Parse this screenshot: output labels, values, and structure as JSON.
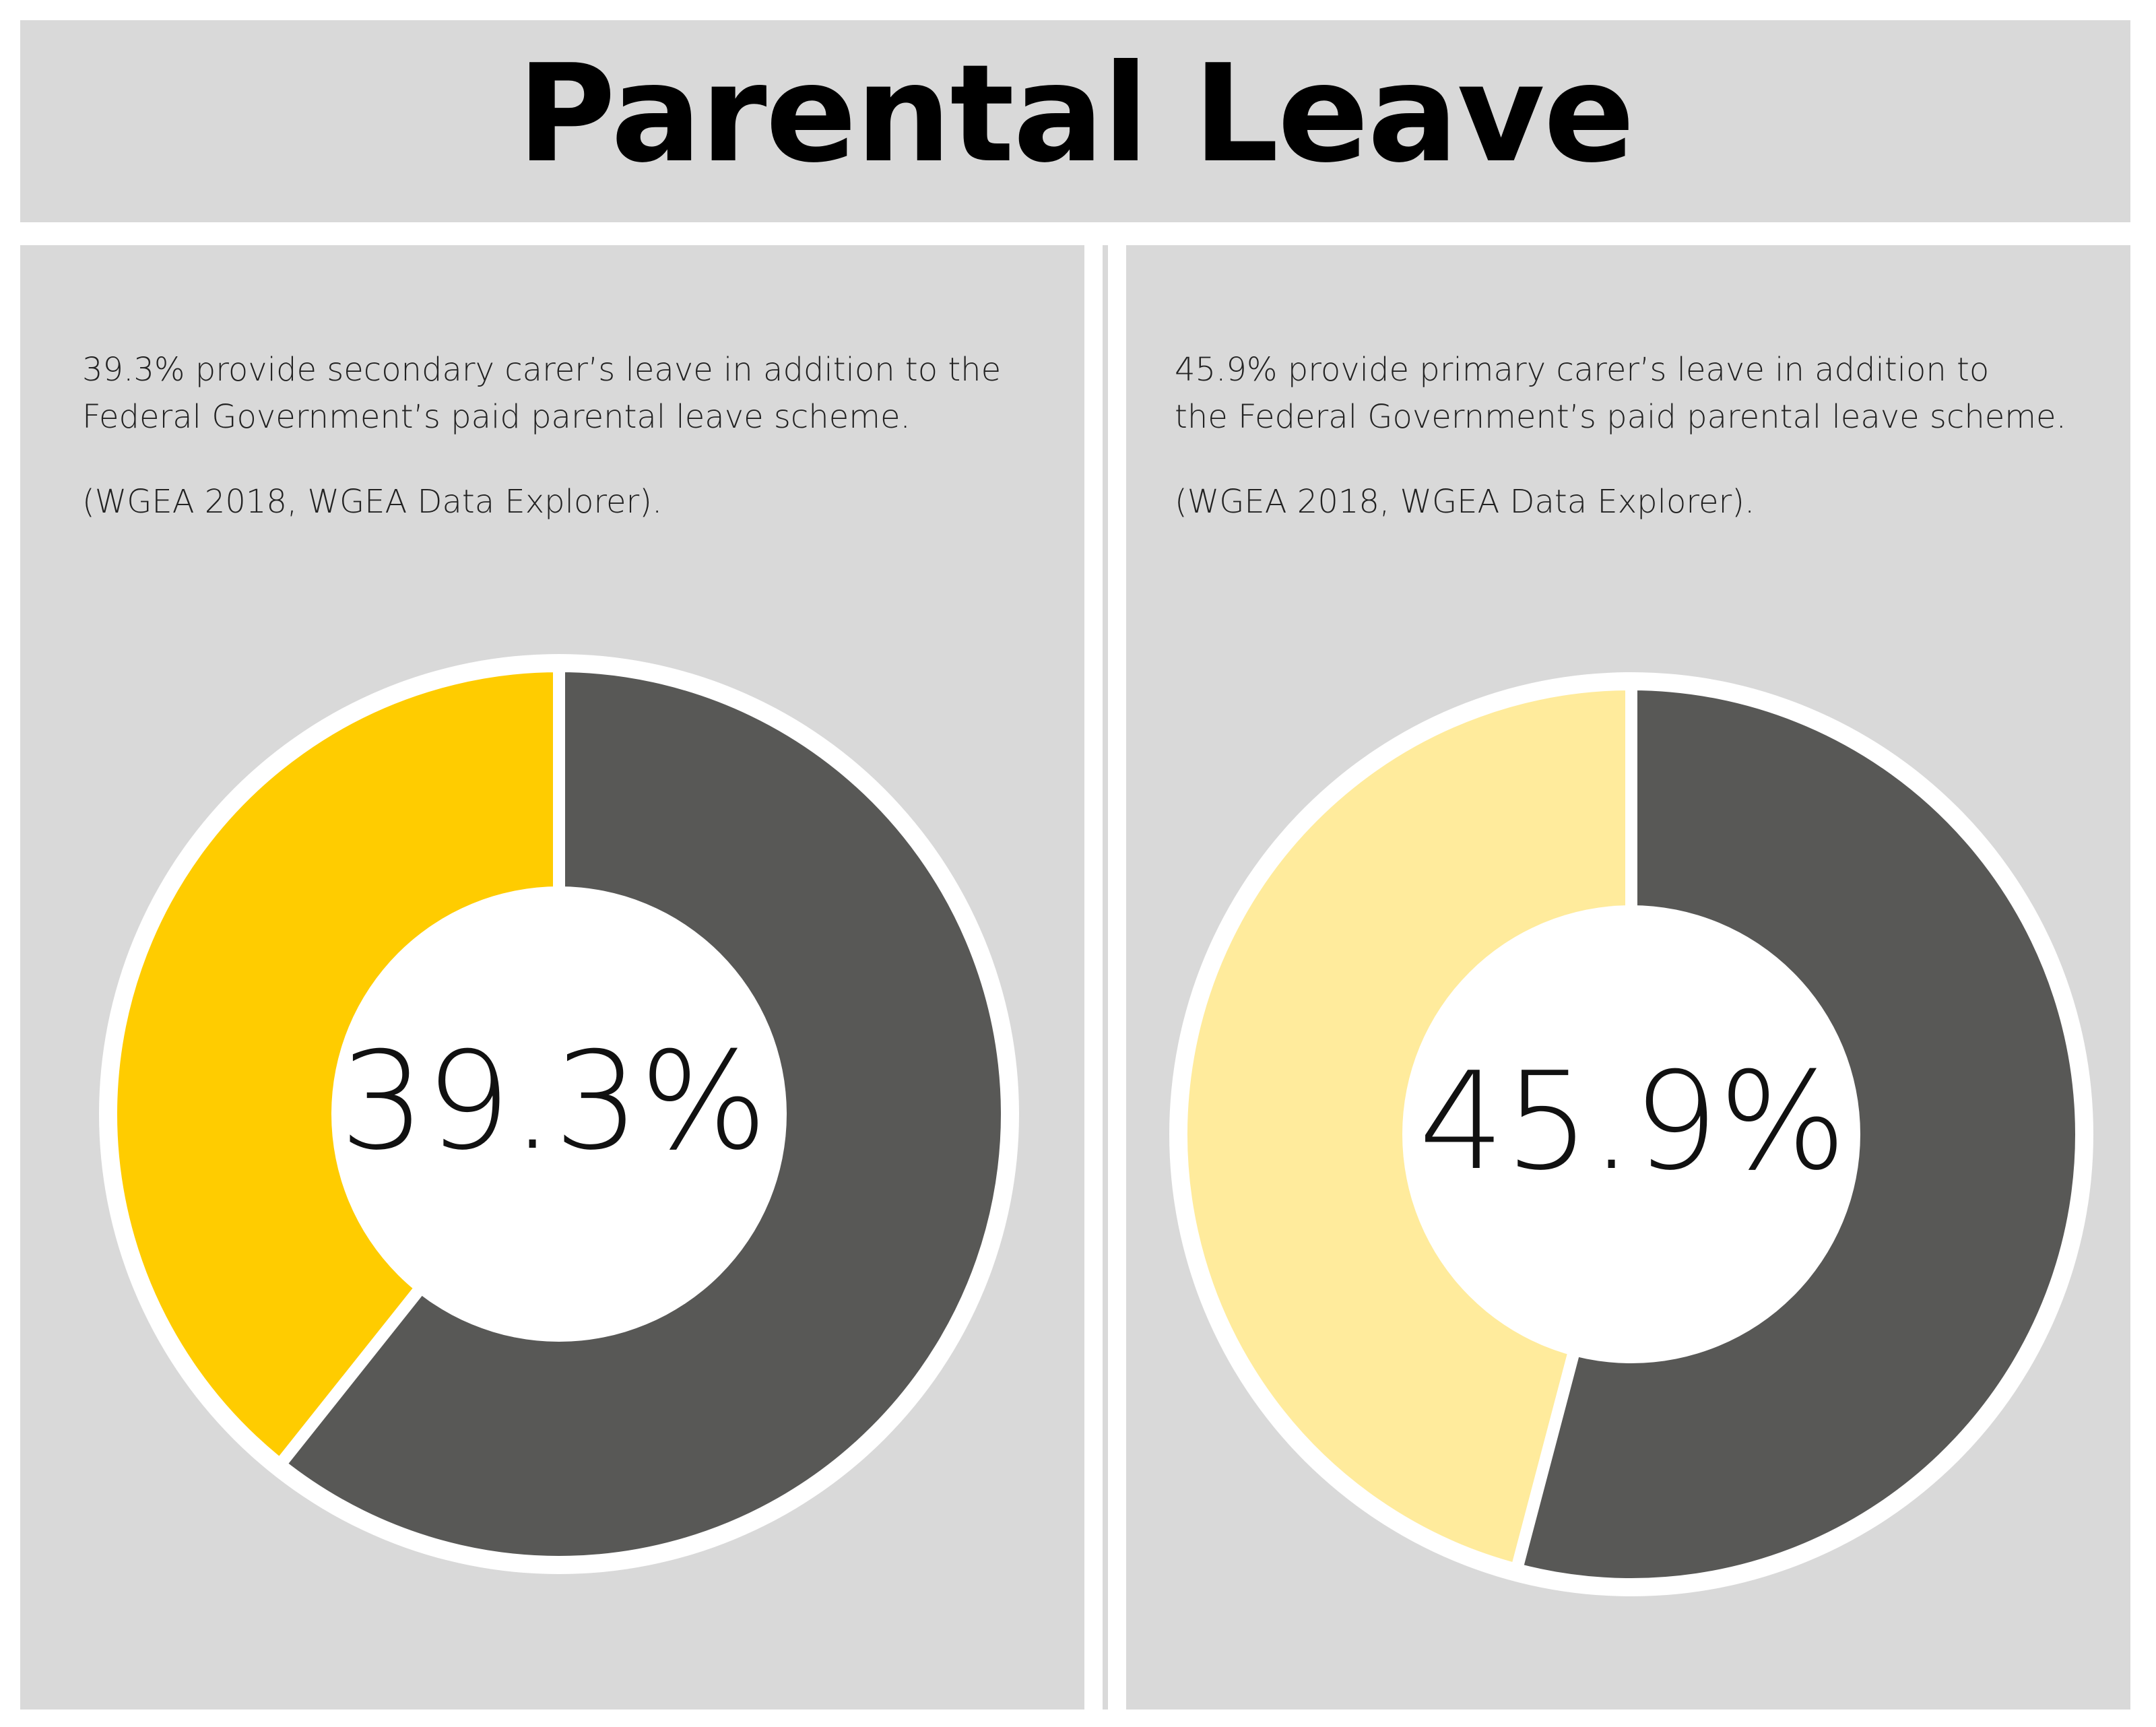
{
  "header": {
    "title": "Parental Leave"
  },
  "colors": {
    "panel_bg": "#d9d9d9",
    "remainder": "#585856",
    "secondary_accent": "#ffcc00",
    "primary_accent": "#ffeb9c",
    "inner_fill": "#ffffff"
  },
  "panels": [
    {
      "caption_lines": [
        "39.3% provide secondary carer’s leave in addition to the",
        "Federal Government’s paid parental leave scheme."
      ],
      "source": "(WGEA 2018, WGEA Data Explorer).",
      "center_label": "39.3%"
    },
    {
      "caption_lines": [
        "45.9% provide primary carer’s leave in addition to",
        "the Federal Government’s paid parental leave scheme."
      ],
      "source": "(WGEA 2018, WGEA Data Explorer).",
      "center_label": "45.9%"
    }
  ],
  "chart_data": [
    {
      "type": "pie",
      "title": "",
      "slices": [
        {
          "label": "",
          "value": 39.3,
          "color": "#ffcc00"
        },
        {
          "label": "",
          "value": 60.7,
          "color": "#585856"
        }
      ]
    },
    {
      "type": "pie",
      "title": "",
      "slices": [
        {
          "label": "",
          "value": 45.9,
          "color": "#ffeb9c"
        },
        {
          "label": "",
          "value": 54.1,
          "color": "#585856"
        }
      ]
    }
  ]
}
